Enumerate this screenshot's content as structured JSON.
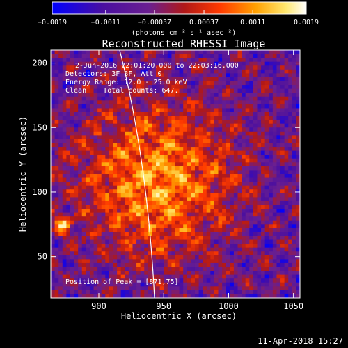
{
  "chart_data": {
    "type": "heatmap",
    "title": "Reconstructed RHESSI Image",
    "xlabel": "Heliocentric X (arcsec)",
    "ylabel": "Heliocentric Y (arcsec)",
    "xlim": [
      863,
      1055
    ],
    "ylim": [
      18,
      210
    ],
    "xticks": [
      900,
      950,
      1000,
      1050
    ],
    "yticks": [
      50,
      100,
      150,
      200
    ],
    "colorbar": {
      "label": "(photons cm⁻² s⁻¹ asec⁻²)",
      "range": [
        -0.0019,
        0.0019
      ],
      "ticks": [
        -0.0019,
        -0.0011,
        -0.00037,
        0.00037,
        0.0011,
        0.0019
      ],
      "tick_labels": [
        "−0.0019",
        "−0.0011",
        "−0.00037",
        "0.00037",
        "0.0011",
        "0.0019"
      ],
      "colors": [
        "#0000ff",
        "#4a0fa0",
        "#6a1f90",
        "#b01818",
        "#ff3a00",
        "#ffa000",
        "#ffe870",
        "#ffffff"
      ]
    },
    "annotations": {
      "time": "2-Jun-2016 22:01:20.000 to 22:03:16.000",
      "detectors": "Detectors: 3F 8F, Att 0",
      "energy": "Energy Range: 12.0 - 25.0 keV",
      "clean": "Clean    Total counts: 647.",
      "peak": "Position of Peak = [871,75]"
    },
    "peak_position": [
      871,
      75
    ],
    "limb_line": "white solar limb curve crossing from upper left to lower center",
    "date_stamp": "11-Apr-2018 15:27"
  }
}
